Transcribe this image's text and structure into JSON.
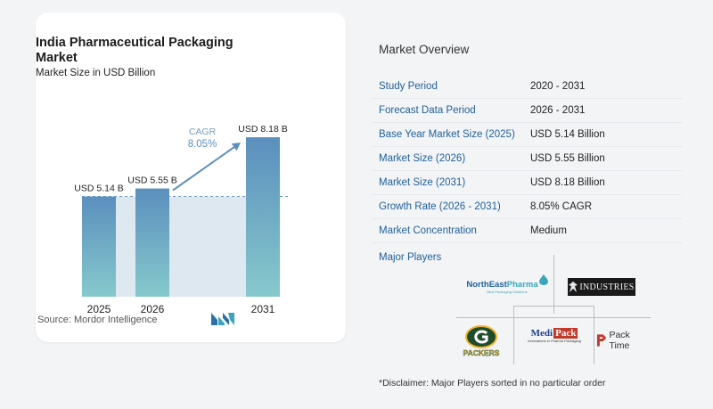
{
  "chart_data": {
    "type": "bar",
    "title": "India Pharmaceutical Packaging Market",
    "subtitle": "Market Size in USD Billion",
    "categories": [
      "2025",
      "2026",
      "2031"
    ],
    "values": [
      5.14,
      5.55,
      8.18
    ],
    "data_labels": [
      "USD 5.14 B",
      "USD 5.55 B",
      "USD 8.18 B"
    ],
    "cagr_label": "CAGR",
    "cagr_value": "8.05%",
    "ylim": [
      0,
      9
    ],
    "grid": false,
    "colors": {
      "bar_top": "#5b8fbd",
      "bar_bottom": "#86c9cc",
      "band": "#dde8f1",
      "arrow": "#5b8fbd",
      "cagr_text": "#5b8fbd"
    }
  },
  "source": "Source:  Mordor Intelligence",
  "overview": {
    "title": "Market Overview",
    "rows": [
      {
        "label": "Study Period",
        "value": "2020 - 2031"
      },
      {
        "label": "Forecast Data Period",
        "value": "2026 - 2031"
      },
      {
        "label": "Base Year Market Size (2025)",
        "value": "USD 5.14 Billion"
      },
      {
        "label": "Market Size (2026)",
        "value": "USD 5.55 Billion"
      },
      {
        "label": "Market Size (2031)",
        "value": "USD 8.18 Billion"
      },
      {
        "label": "Growth Rate (2026 - 2031)",
        "value": "8.05% CAGR"
      },
      {
        "label": "Market Concentration",
        "value": "Medium"
      }
    ]
  },
  "players": {
    "title": "Major Players",
    "northeast_1": "NorthEast",
    "northeast_2": "Pharma",
    "northeast_tag": "Best Packaging Solutions",
    "industries": "INDUSTRIES",
    "medipack_1": "Medi",
    "medipack_2": "Pack",
    "medipack_tag": "Innovations in Pharma Packaging",
    "packtime": "Pack Time",
    "packers": "PACKERS"
  },
  "disclaimer": "*Disclaimer: Major Players sorted in no particular order"
}
